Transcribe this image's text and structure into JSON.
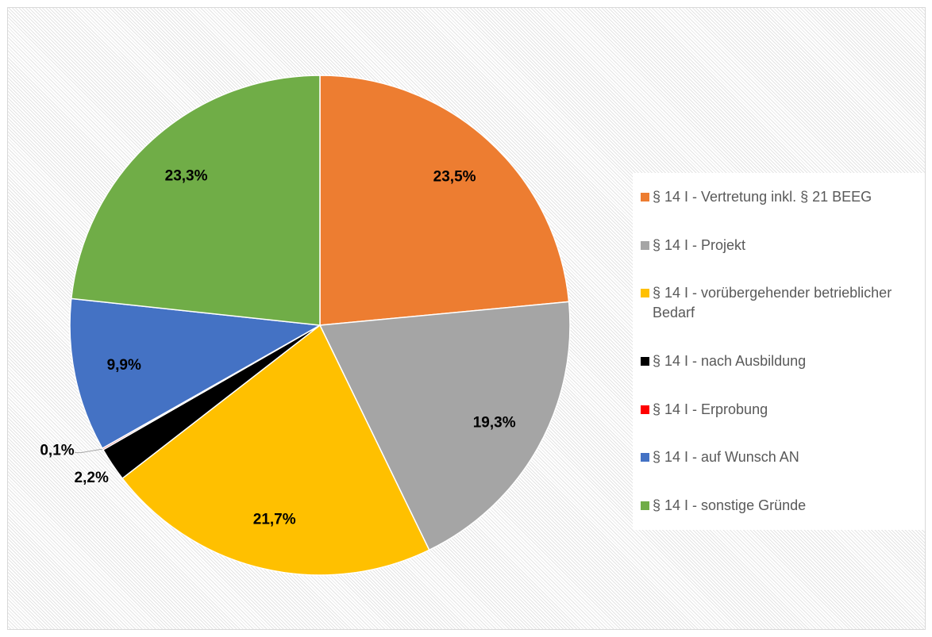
{
  "chart_data": {
    "type": "pie",
    "categories": [
      "§ 14 I - Vertretung inkl. § 21 BEEG",
      "§ 14 I - Projekt",
      "§ 14 I - vorübergehender betrieblicher Bedarf",
      "§ 14 I - nach Ausbildung",
      "§ 14 I - Erprobung",
      "§ 14 I - auf Wunsch AN",
      "§ 14 I - sonstige Gründe"
    ],
    "values": [
      23.5,
      19.3,
      21.7,
      2.2,
      0.1,
      9.9,
      23.3
    ],
    "value_labels": [
      "23,5%",
      "19,3%",
      "21,7%",
      "2,2%",
      "0,1%",
      "9,9%",
      "23,3%"
    ],
    "colors": [
      "#ed7d31",
      "#a5a5a5",
      "#ffc000",
      "#000000",
      "#ff0000",
      "#4472c4",
      "#70ad47"
    ],
    "legend": "right"
  }
}
